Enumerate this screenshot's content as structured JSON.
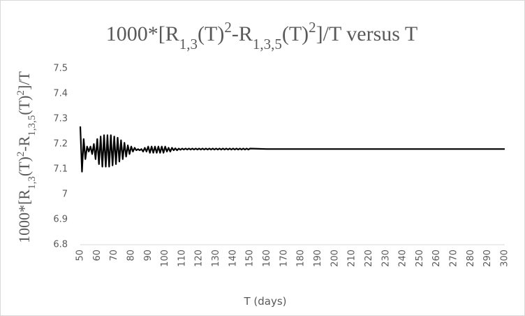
{
  "chart_data": {
    "type": "line",
    "title": [
      "1000*[R",
      "1,3",
      "(T)",
      "2",
      "-R",
      "1,3,5",
      "(T)",
      "2",
      "]/T versus T"
    ],
    "y_label": [
      "1000*[R",
      "1,3",
      "(T)",
      "2",
      "-R",
      "1,3,5",
      "(T)",
      "2",
      "]/T"
    ],
    "x_label": "T (days)",
    "x": [
      50,
      51,
      52,
      53,
      54,
      55,
      56,
      57,
      58,
      59,
      60,
      61,
      62,
      63,
      64,
      65,
      66,
      67,
      68,
      69,
      70,
      71,
      72,
      73,
      74,
      75,
      76,
      77,
      78,
      79,
      80,
      81,
      82,
      83,
      84,
      85,
      86,
      87,
      88,
      89,
      90,
      91,
      92,
      93,
      94,
      95,
      96,
      97,
      98,
      99,
      100,
      101,
      102,
      103,
      104,
      105,
      106,
      107,
      108,
      109,
      110,
      111,
      112,
      113,
      114,
      115,
      116,
      117,
      118,
      119,
      120,
      121,
      122,
      123,
      124,
      125,
      126,
      127,
      128,
      129,
      130,
      131,
      132,
      133,
      134,
      135,
      136,
      137,
      138,
      139,
      140,
      141,
      142,
      143,
      144,
      145,
      146,
      147,
      148,
      149,
      150,
      160,
      170,
      180,
      190,
      200,
      210,
      220,
      230,
      240,
      250,
      260,
      270,
      280,
      290,
      300
    ],
    "values": [
      7.27,
      7.09,
      7.22,
      7.14,
      7.19,
      7.17,
      7.19,
      7.16,
      7.2,
      7.14,
      7.22,
      7.12,
      7.23,
      7.11,
      7.235,
      7.11,
      7.235,
      7.11,
      7.235,
      7.115,
      7.23,
      7.12,
      7.225,
      7.13,
      7.215,
      7.14,
      7.205,
      7.15,
      7.195,
      7.16,
      7.19,
      7.17,
      7.185,
      7.175,
      7.18,
      7.175,
      7.18,
      7.17,
      7.185,
      7.17,
      7.19,
      7.165,
      7.19,
      7.165,
      7.19,
      7.165,
      7.19,
      7.165,
      7.19,
      7.165,
      7.19,
      7.17,
      7.185,
      7.17,
      7.185,
      7.175,
      7.183,
      7.175,
      7.182,
      7.177,
      7.182,
      7.178,
      7.182,
      7.178,
      7.182,
      7.178,
      7.182,
      7.178,
      7.182,
      7.178,
      7.182,
      7.178,
      7.182,
      7.178,
      7.182,
      7.178,
      7.182,
      7.178,
      7.182,
      7.178,
      7.182,
      7.178,
      7.182,
      7.178,
      7.182,
      7.178,
      7.182,
      7.178,
      7.182,
      7.178,
      7.182,
      7.178,
      7.182,
      7.178,
      7.182,
      7.178,
      7.182,
      7.178,
      7.182,
      7.178,
      7.182,
      7.18,
      7.18,
      7.18,
      7.18,
      7.18,
      7.18,
      7.18,
      7.18,
      7.18,
      7.18,
      7.18,
      7.18,
      7.18,
      7.18,
      7.18
    ],
    "color": "#000000",
    "xlim": [
      50,
      300
    ],
    "xticks": [
      50,
      60,
      70,
      80,
      90,
      100,
      110,
      120,
      130,
      140,
      150,
      160,
      170,
      180,
      190,
      200,
      210,
      220,
      230,
      240,
      250,
      260,
      270,
      280,
      290,
      300
    ],
    "ylim": [
      6.8,
      7.5
    ],
    "yticks": [
      6.8,
      6.9,
      7,
      7.1,
      7.2,
      7.3,
      7.4,
      7.5
    ],
    "grid": false
  }
}
